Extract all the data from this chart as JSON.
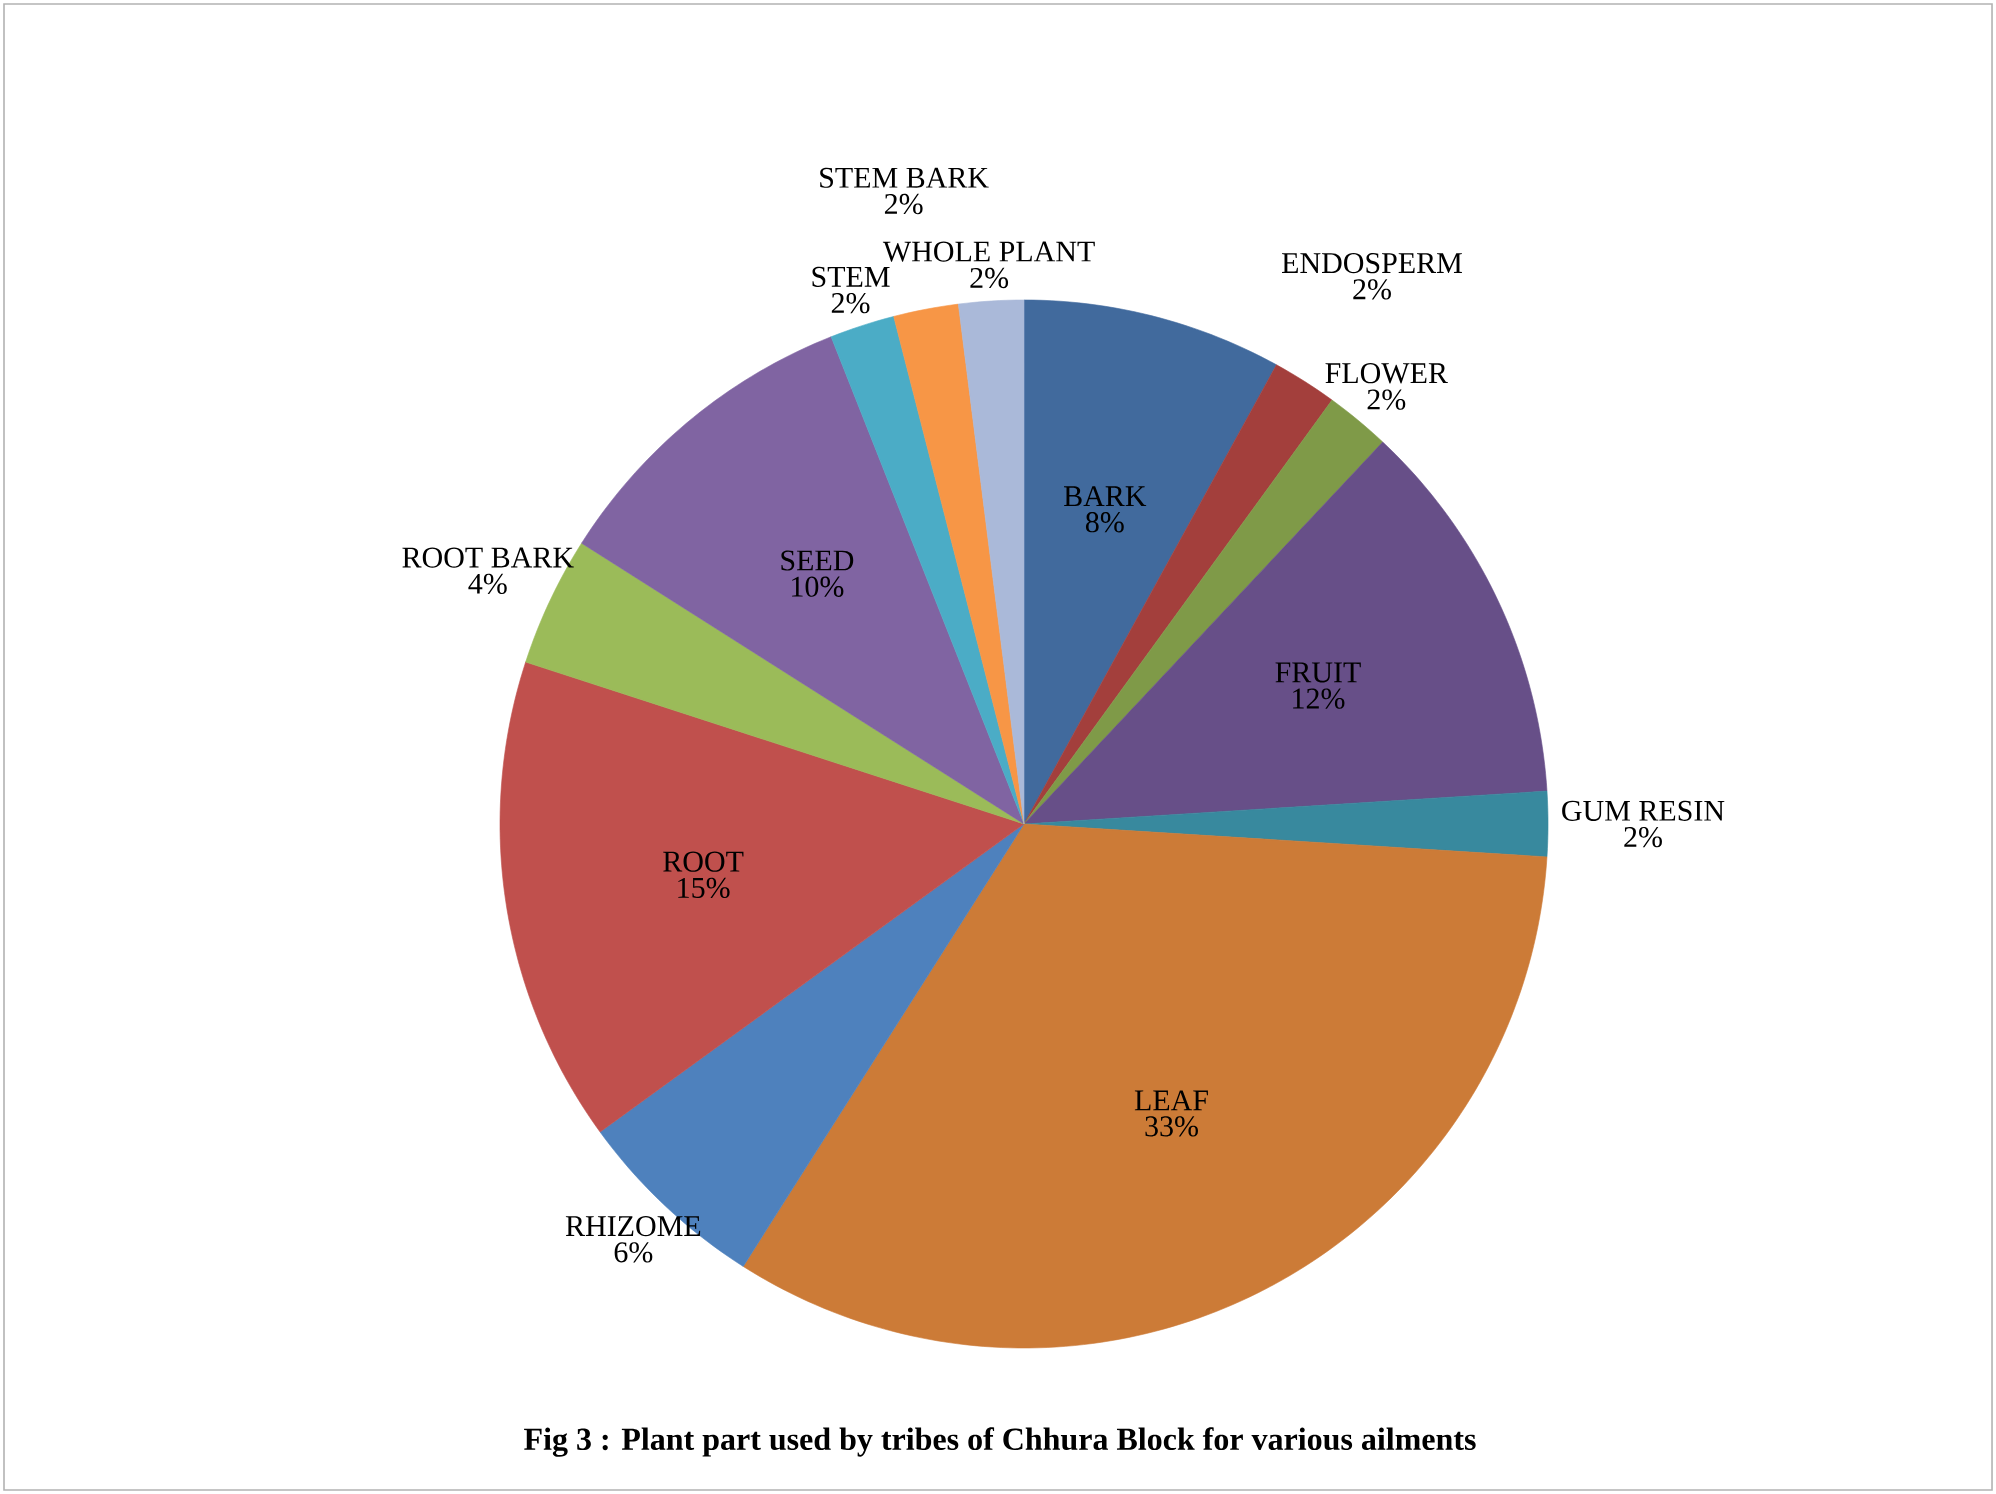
{
  "chart_data": {
    "type": "pie",
    "title": "Fig 3 : Plant part used by tribes of Chhura Block for various ailments",
    "categories": [
      "BARK",
      "ENDOSPERM",
      "FLOWER",
      "FRUIT",
      "GUM RESIN",
      "LEAF",
      "RHIZOME",
      "ROOT",
      "ROOT BARK",
      "SEED",
      "STEM",
      "STEM BARK",
      "WHOLE PLANT"
    ],
    "values": [
      8,
      2,
      2,
      12,
      2,
      33,
      6,
      15,
      4,
      10,
      2,
      2,
      2
    ],
    "value_labels": [
      "8%",
      "2%",
      "2%",
      "12%",
      "2%",
      "33%",
      "6%",
      "15%",
      "4%",
      "10%",
      "2%",
      "2%",
      "2%"
    ],
    "colors": [
      "#416a9d",
      "#a33f3c",
      "#7f9a48",
      "#674f88",
      "#38899e",
      "#cc7b37",
      "#4e81bd",
      "#c0504d",
      "#9bbb59",
      "#8064a2",
      "#4bacc6",
      "#f79646",
      "#aab9d9"
    ]
  }
}
